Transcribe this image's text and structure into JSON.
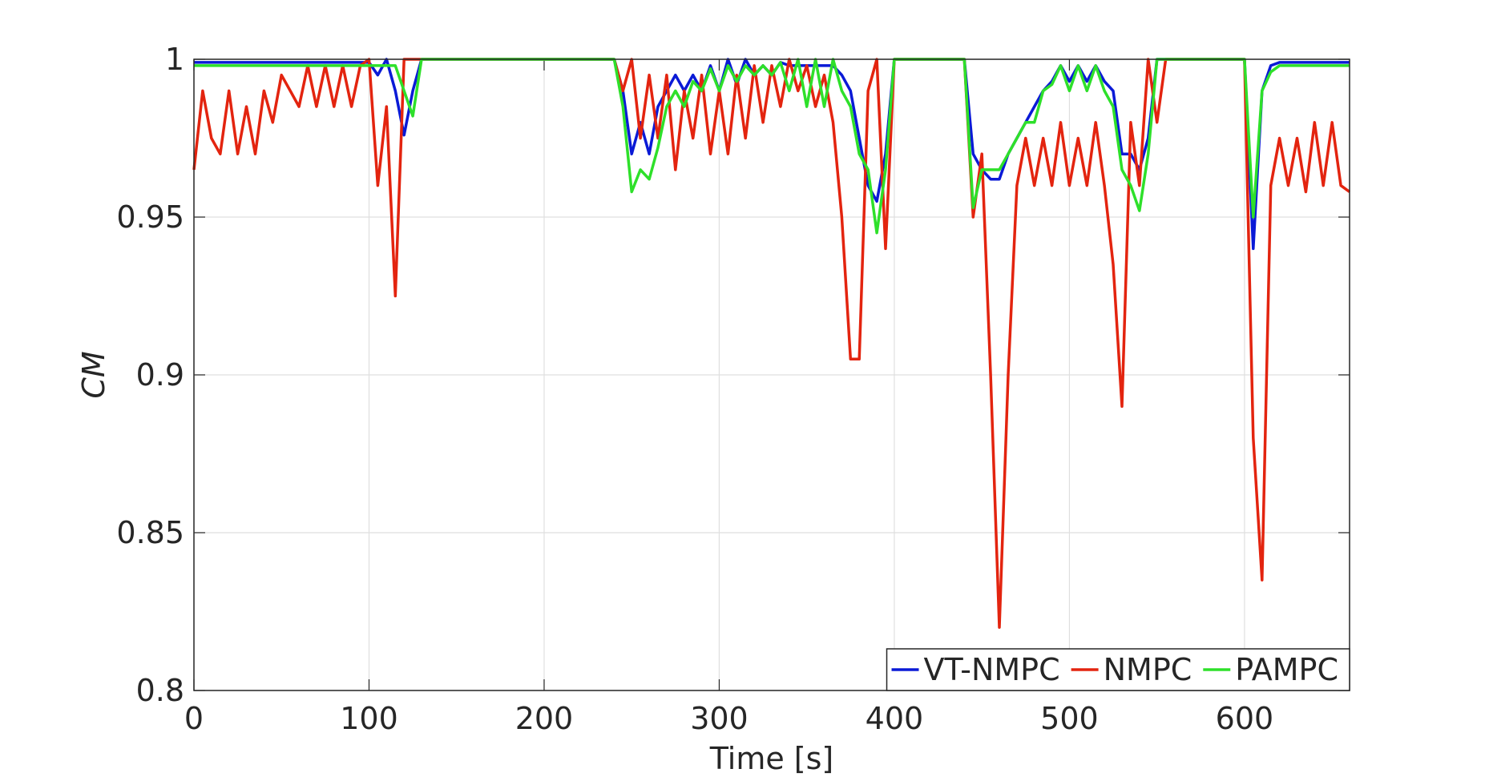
{
  "chart_data": {
    "type": "line",
    "xlabel": "Time [s]",
    "ylabel": "CM",
    "x": [
      0,
      5,
      10,
      15,
      20,
      25,
      30,
      35,
      40,
      45,
      50,
      55,
      60,
      65,
      70,
      75,
      80,
      85,
      90,
      95,
      100,
      105,
      110,
      115,
      120,
      125,
      130,
      135,
      140,
      145,
      150,
      155,
      160,
      165,
      170,
      175,
      180,
      185,
      190,
      195,
      200,
      205,
      210,
      215,
      220,
      225,
      230,
      235,
      240,
      245,
      250,
      255,
      260,
      265,
      270,
      275,
      280,
      285,
      290,
      295,
      300,
      305,
      310,
      315,
      320,
      325,
      330,
      335,
      340,
      345,
      350,
      355,
      360,
      365,
      370,
      375,
      380,
      385,
      390,
      395,
      400,
      405,
      410,
      415,
      420,
      425,
      430,
      435,
      440,
      445,
      450,
      455,
      460,
      465,
      470,
      475,
      480,
      485,
      490,
      495,
      500,
      505,
      510,
      515,
      520,
      525,
      530,
      535,
      540,
      545,
      550,
      555,
      560,
      565,
      570,
      575,
      580,
      585,
      590,
      595,
      600,
      605,
      610,
      615,
      620,
      625,
      630,
      635,
      640,
      645,
      650,
      655,
      660
    ],
    "series": [
      {
        "name": "VT-NMPC",
        "color": "#0a1ad6",
        "values": [
          0.999,
          0.999,
          0.999,
          0.999,
          0.999,
          0.999,
          0.999,
          0.999,
          0.999,
          0.999,
          0.999,
          0.999,
          0.999,
          0.999,
          0.999,
          0.999,
          0.999,
          0.999,
          0.999,
          0.999,
          0.999,
          0.995,
          1,
          0.99,
          0.976,
          0.99,
          1,
          1,
          1,
          1,
          1,
          1,
          1,
          1,
          1,
          1,
          1,
          1,
          1,
          1,
          1,
          1,
          1,
          1,
          1,
          1,
          1,
          1,
          1,
          0.99,
          0.97,
          0.98,
          0.97,
          0.985,
          0.99,
          0.995,
          0.99,
          0.995,
          0.99,
          0.998,
          0.99,
          1,
          0.992,
          1,
          0.995,
          0.998,
          0.995,
          0.999,
          0.998,
          0.998,
          0.998,
          0.998,
          0.998,
          0.998,
          0.995,
          0.99,
          0.975,
          0.96,
          0.955,
          0.97,
          1,
          1,
          1,
          1,
          1,
          1,
          1,
          1,
          1,
          0.97,
          0.965,
          0.962,
          0.962,
          0.97,
          0.975,
          0.98,
          0.985,
          0.99,
          0.993,
          0.998,
          0.993,
          0.998,
          0.993,
          0.998,
          0.993,
          0.99,
          0.97,
          0.97,
          0.965,
          0.975,
          1,
          1,
          1,
          1,
          1,
          1,
          1,
          1,
          1,
          1,
          1,
          0.94,
          0.99,
          0.998,
          0.999,
          0.999,
          0.999,
          0.999,
          0.999,
          0.999,
          0.999,
          0.999,
          0.999
        ]
      },
      {
        "name": "NMPC",
        "color": "#e3240f",
        "values": [
          0.965,
          0.99,
          0.975,
          0.97,
          0.99,
          0.97,
          0.985,
          0.97,
          0.99,
          0.98,
          0.995,
          0.99,
          0.985,
          0.998,
          0.985,
          0.998,
          0.985,
          0.998,
          0.985,
          0.998,
          1,
          0.96,
          0.985,
          0.925,
          1,
          1,
          1,
          1,
          1,
          1,
          1,
          1,
          1,
          1,
          1,
          1,
          1,
          1,
          1,
          1,
          1,
          1,
          1,
          1,
          1,
          1,
          1,
          1,
          1,
          0.99,
          1,
          0.975,
          0.995,
          0.975,
          0.995,
          0.965,
          0.99,
          0.975,
          0.995,
          0.97,
          0.99,
          0.97,
          0.995,
          0.975,
          0.998,
          0.98,
          0.998,
          0.985,
          1,
          0.99,
          0.998,
          0.985,
          0.995,
          0.98,
          0.95,
          0.905,
          0.905,
          0.99,
          1,
          0.94,
          1,
          1,
          1,
          1,
          1,
          1,
          1,
          1,
          1,
          0.95,
          0.97,
          0.9,
          0.82,
          0.9,
          0.96,
          0.975,
          0.96,
          0.975,
          0.96,
          0.98,
          0.96,
          0.975,
          0.96,
          0.98,
          0.96,
          0.935,
          0.89,
          0.98,
          0.96,
          1,
          0.98,
          1,
          1,
          1,
          1,
          1,
          1,
          1,
          1,
          1,
          1,
          0.88,
          0.835,
          0.96,
          0.975,
          0.96,
          0.975,
          0.958,
          0.98,
          0.96,
          0.98,
          0.96,
          0.958
        ]
      },
      {
        "name": "PAMPC",
        "color": "#2ee02a",
        "values": [
          0.998,
          0.998,
          0.998,
          0.998,
          0.998,
          0.998,
          0.998,
          0.998,
          0.998,
          0.998,
          0.998,
          0.998,
          0.998,
          0.998,
          0.998,
          0.998,
          0.998,
          0.998,
          0.998,
          0.998,
          0.998,
          0.998,
          0.998,
          0.998,
          0.99,
          0.982,
          1,
          1,
          1,
          1,
          1,
          1,
          1,
          1,
          1,
          1,
          1,
          1,
          1,
          1,
          1,
          1,
          1,
          1,
          1,
          1,
          1,
          1,
          1,
          0.985,
          0.958,
          0.965,
          0.962,
          0.972,
          0.985,
          0.99,
          0.985,
          0.993,
          0.99,
          0.997,
          0.99,
          0.998,
          0.993,
          0.998,
          0.995,
          0.998,
          0.995,
          0.999,
          0.99,
          1,
          0.985,
          1,
          0.985,
          1,
          0.99,
          0.985,
          0.97,
          0.965,
          0.945,
          0.965,
          1,
          1,
          1,
          1,
          1,
          1,
          1,
          1,
          1,
          0.953,
          0.965,
          0.965,
          0.965,
          0.97,
          0.975,
          0.98,
          0.98,
          0.99,
          0.992,
          0.998,
          0.99,
          0.998,
          0.99,
          0.998,
          0.99,
          0.985,
          0.965,
          0.96,
          0.952,
          0.97,
          1,
          1,
          1,
          1,
          1,
          1,
          1,
          1,
          1,
          1,
          1,
          0.95,
          0.99,
          0.996,
          0.998,
          0.998,
          0.998,
          0.998,
          0.998,
          0.998,
          0.998,
          0.998,
          0.998
        ]
      }
    ],
    "xlim": [
      0,
      660
    ],
    "ylim": [
      0.8,
      1
    ],
    "xticks": [
      0,
      100,
      200,
      300,
      400,
      500,
      600
    ],
    "yticks": [
      0.8,
      0.85,
      0.9,
      0.95,
      1
    ],
    "grid": true,
    "legend": "lower right"
  }
}
